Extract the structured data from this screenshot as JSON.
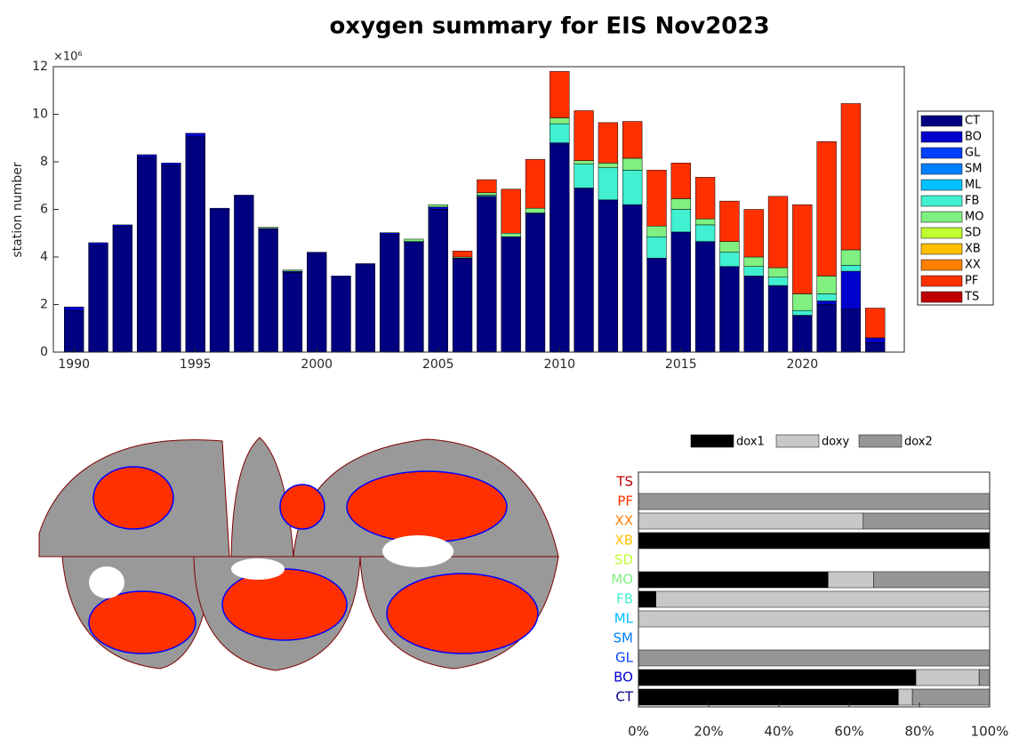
{
  "chart_data": [
    {
      "type": "bar",
      "stacked": true,
      "title": "oxygen summary for EIS Nov2023",
      "ylabel": "station number",
      "y_multiplier_label": "×10⁶",
      "x": [
        1990,
        1991,
        1992,
        1993,
        1994,
        1995,
        1996,
        1997,
        1998,
        1999,
        2000,
        2001,
        2002,
        2003,
        2004,
        2005,
        2006,
        2007,
        2008,
        2009,
        2010,
        2011,
        2012,
        2013,
        2014,
        2015,
        2016,
        2017,
        2018,
        2019,
        2020,
        2021,
        2022,
        2023
      ],
      "xlim": [
        1989.15,
        2024.2
      ],
      "xticks": [
        1990,
        1995,
        2000,
        2005,
        2010,
        2015,
        2020
      ],
      "ylim": [
        0,
        12
      ],
      "yticks": [
        0,
        2,
        4,
        6,
        8,
        10,
        12
      ],
      "legend": "outside-right",
      "series": [
        {
          "name": "CT",
          "color": "#000080",
          "values": [
            1.75,
            4.5,
            5.28,
            8.2,
            7.85,
            9.05,
            6.0,
            6.55,
            5.15,
            3.35,
            4.15,
            3.15,
            3.67,
            4.95,
            4.6,
            6.0,
            3.9,
            6.5,
            4.8,
            5.8,
            8.75,
            6.9,
            6.4,
            6.2,
            3.95,
            5.05,
            4.65,
            3.6,
            3.2,
            2.8,
            1.5,
            2.0,
            1.8,
            0.4
          ]
        },
        {
          "name": "BO",
          "color": "#0000cd",
          "values": [
            0.15,
            0.1,
            0.07,
            0.1,
            0.1,
            0.15,
            0.05,
            0.05,
            0.05,
            0.05,
            0.05,
            0.05,
            0.05,
            0.07,
            0.05,
            0.1,
            0.05,
            0.05,
            0.05,
            0.05,
            0.05,
            0,
            0,
            0,
            0,
            0,
            0,
            0,
            0,
            0,
            0.05,
            0.15,
            1.6,
            0.2
          ]
        },
        {
          "name": "GL",
          "color": "#0040ff",
          "values": [
            0,
            0,
            0,
            0,
            0,
            0,
            0,
            0,
            0,
            0,
            0,
            0,
            0,
            0,
            0,
            0,
            0,
            0,
            0,
            0,
            0,
            0,
            0,
            0,
            0,
            0,
            0,
            0,
            0,
            0,
            0,
            0,
            0,
            0
          ]
        },
        {
          "name": "SM",
          "color": "#0080ff",
          "values": [
            0,
            0,
            0,
            0,
            0,
            0,
            0,
            0,
            0,
            0,
            0,
            0,
            0,
            0,
            0,
            0,
            0,
            0,
            0,
            0,
            0,
            0,
            0,
            0,
            0,
            0,
            0,
            0,
            0,
            0,
            0,
            0,
            0,
            0
          ]
        },
        {
          "name": "ML",
          "color": "#00c0ff",
          "values": [
            0,
            0,
            0,
            0,
            0,
            0,
            0,
            0,
            0,
            0,
            0,
            0,
            0,
            0,
            0,
            0,
            0,
            0,
            0,
            0,
            0,
            0,
            0,
            0,
            0,
            0,
            0,
            0,
            0,
            0,
            0,
            0,
            0,
            0
          ]
        },
        {
          "name": "FB",
          "color": "#40f0d0",
          "values": [
            0,
            0,
            0,
            0,
            0,
            0,
            0,
            0,
            0,
            0,
            0,
            0,
            0,
            0,
            0,
            0,
            0,
            0.05,
            0,
            0,
            0.8,
            1.0,
            1.35,
            1.45,
            0.9,
            0.95,
            0.7,
            0.6,
            0.4,
            0.35,
            0.2,
            0.3,
            0.25,
            0
          ]
        },
        {
          "name": "MO",
          "color": "#80f080",
          "values": [
            0,
            0,
            0,
            0,
            0,
            0,
            0,
            0,
            0.05,
            0.05,
            0,
            0,
            0,
            0,
            0.1,
            0.1,
            0.05,
            0.1,
            0.15,
            0.2,
            0.25,
            0.15,
            0.2,
            0.5,
            0.45,
            0.45,
            0.25,
            0.45,
            0.4,
            0.4,
            0.7,
            0.75,
            0.65,
            0
          ]
        },
        {
          "name": "SD",
          "color": "#c0ff30",
          "values": [
            0,
            0,
            0,
            0,
            0,
            0,
            0,
            0,
            0,
            0,
            0,
            0,
            0,
            0,
            0,
            0,
            0,
            0,
            0,
            0,
            0,
            0,
            0,
            0,
            0,
            0,
            0,
            0,
            0,
            0,
            0,
            0,
            0,
            0
          ]
        },
        {
          "name": "XB",
          "color": "#ffc000",
          "values": [
            0,
            0,
            0,
            0,
            0,
            0,
            0,
            0,
            0,
            0,
            0,
            0,
            0,
            0,
            0,
            0,
            0,
            0,
            0,
            0,
            0,
            0,
            0,
            0,
            0,
            0,
            0,
            0,
            0,
            0,
            0,
            0,
            0,
            0
          ]
        },
        {
          "name": "XX",
          "color": "#ff8000",
          "values": [
            0,
            0,
            0,
            0,
            0,
            0,
            0,
            0,
            0,
            0,
            0,
            0,
            0,
            0,
            0,
            0,
            0,
            0,
            0,
            0,
            0,
            0,
            0,
            0,
            0,
            0,
            0,
            0,
            0,
            0,
            0,
            0,
            0,
            0
          ]
        },
        {
          "name": "PF",
          "color": "#ff3000",
          "values": [
            0,
            0,
            0,
            0,
            0,
            0,
            0,
            0,
            0,
            0,
            0,
            0,
            0,
            0,
            0,
            0,
            0.25,
            0.55,
            1.85,
            2.05,
            1.95,
            2.1,
            1.7,
            1.55,
            2.35,
            1.5,
            1.75,
            1.7,
            2.0,
            3.0,
            3.75,
            5.65,
            6.15,
            1.25
          ]
        },
        {
          "name": "TS",
          "color": "#c00000",
          "values": [
            0,
            0,
            0,
            0,
            0,
            0,
            0,
            0,
            0,
            0,
            0,
            0,
            0,
            0,
            0,
            0,
            0,
            0,
            0,
            0,
            0,
            0,
            0,
            0,
            0,
            0,
            0,
            0,
            0,
            0,
            0,
            0,
            0,
            0
          ]
        }
      ]
    },
    {
      "type": "barh",
      "stacked": true,
      "categories": [
        "TS",
        "PF",
        "XX",
        "XB",
        "SD",
        "MO",
        "FB",
        "ML",
        "SM",
        "GL",
        "BO",
        "CT"
      ],
      "category_colors": [
        "#c00000",
        "#ff3000",
        "#ff8000",
        "#ffc000",
        "#c0ff30",
        "#80f080",
        "#40f0d0",
        "#00c0ff",
        "#0080ff",
        "#0040ff",
        "#0000cd",
        "#000080"
      ],
      "xlim": [
        0,
        100
      ],
      "xticks": [
        {
          "value": 0,
          "label": "0%"
        },
        {
          "value": 20,
          "label": "20%"
        },
        {
          "value": 40,
          "label": "40%"
        },
        {
          "value": 60,
          "label": "60%"
        },
        {
          "value": 80,
          "label": "80%"
        },
        {
          "value": 100,
          "label": "100%"
        }
      ],
      "legend": "top",
      "series": [
        {
          "name": "dox1",
          "color": "#000000",
          "values": [
            0,
            0,
            0,
            100,
            0,
            54,
            5,
            0,
            0,
            0,
            79,
            74
          ]
        },
        {
          "name": "doxy",
          "color": "#c8c8c8",
          "values": [
            0,
            0,
            64,
            0,
            0,
            13,
            95,
            100,
            0,
            0,
            18,
            4
          ]
        },
        {
          "name": "dox2",
          "color": "#969696",
          "values": [
            0,
            100,
            36,
            0,
            0,
            33,
            0,
            0,
            0,
            100,
            3,
            22
          ]
        }
      ]
    }
  ]
}
